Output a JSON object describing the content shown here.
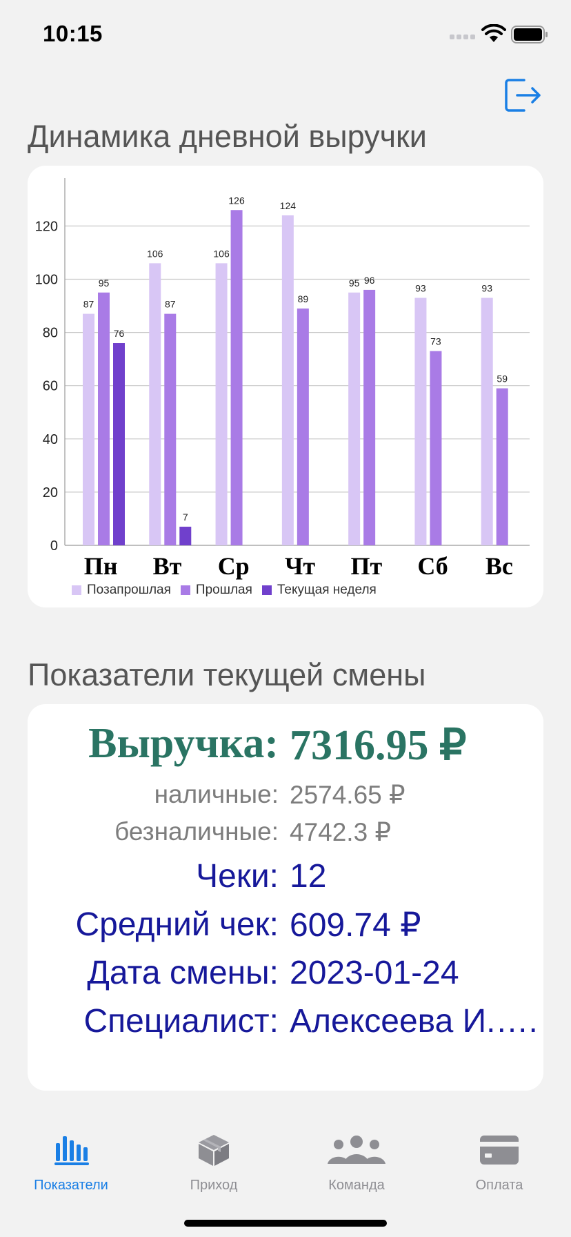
{
  "status": {
    "time": "10:15"
  },
  "chart_section": {
    "title": "Динамика дневной выручки"
  },
  "chart_data": {
    "type": "bar",
    "categories": [
      "Пн",
      "Вт",
      "Ср",
      "Чт",
      "Пт",
      "Сб",
      "Вс"
    ],
    "series": [
      {
        "name": "Позапрошлая",
        "color": "#d8c6f5",
        "values": [
          87,
          106,
          106,
          124,
          95,
          93,
          93
        ]
      },
      {
        "name": "Прошлая",
        "color": "#a97be6",
        "values": [
          95,
          87,
          126,
          89,
          96,
          73,
          59
        ]
      },
      {
        "name": "Текущая неделя",
        "color": "#7040cc",
        "values": [
          76,
          7,
          null,
          null,
          null,
          null,
          null
        ]
      }
    ],
    "y_ticks": [
      0,
      20,
      40,
      60,
      80,
      100,
      120
    ],
    "ylim": [
      0,
      138
    ],
    "grid": true,
    "legend_position": "bottom"
  },
  "metrics_section": {
    "title": "Показатели текущей смены",
    "revenue": {
      "label": "Выручка:",
      "value": "7316.95 ₽"
    },
    "cash": {
      "label": "наличные:",
      "value": "2574.65 ₽"
    },
    "cashless": {
      "label": "безналичные:",
      "value": "4742.3 ₽"
    },
    "checks": {
      "label": "Чеки:",
      "value": "12"
    },
    "avg_check": {
      "label": "Средний чек:",
      "value": "609.74 ₽"
    },
    "shift_date": {
      "label": "Дата смены:",
      "value": "2023-01-24"
    },
    "specialist": {
      "label": "Специалист:",
      "value": "Алексеева И.…."
    }
  },
  "tabs": [
    {
      "label": "Показатели",
      "icon": "chart-bars-icon",
      "active": true
    },
    {
      "label": "Приход",
      "icon": "box-icon",
      "active": false
    },
    {
      "label": "Команда",
      "icon": "team-icon",
      "active": false
    },
    {
      "label": "Оплата",
      "icon": "credit-card-icon",
      "active": false
    }
  ],
  "colors": {
    "accent": "#1a7fe5",
    "revenue": "#2a7463",
    "metric_blue": "#16189a"
  }
}
